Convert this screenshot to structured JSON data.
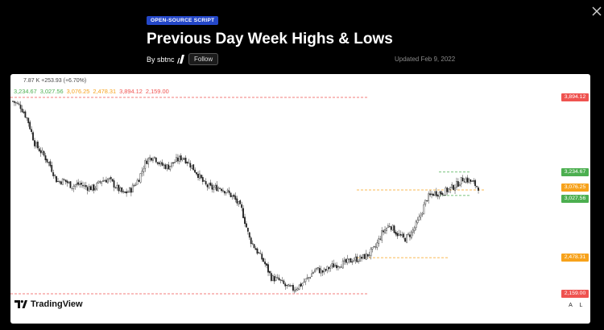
{
  "header": {
    "badge": "OPEN-SOURCE SCRIPT",
    "title": "Previous Day Week Highs & Lows",
    "author": "By sbtnc",
    "follow_label": "Follow",
    "updated": "Updated Feb 9, 2022"
  },
  "chart": {
    "legend_line1": "7.87 K  +253.93 (+6.70%)",
    "legend_values": [
      {
        "text": "3,234.67",
        "color": "#4caf50"
      },
      {
        "text": "3,027.56",
        "color": "#4caf50"
      },
      {
        "text": "3,076.25",
        "color": "#f7a21b"
      },
      {
        "text": "2,478.31",
        "color": "#f7a21b"
      },
      {
        "text": "3,894.12",
        "color": "#ef5350"
      },
      {
        "text": "2,159.00",
        "color": "#ef5350"
      }
    ],
    "price_tags": [
      {
        "label": "3,894.12",
        "color": "#ef5350"
      },
      {
        "label": "3,234.67",
        "color": "#4caf50"
      },
      {
        "label": "3,076.25",
        "color": "#f7a21b"
      },
      {
        "label": "3,027.56",
        "color": "#4caf50"
      },
      {
        "label": "2,478.31",
        "color": "#f7a21b"
      },
      {
        "label": "2,159.00",
        "color": "#ef5350"
      }
    ],
    "watermark": "TradingView",
    "axis_auto": "A",
    "axis_log": "L"
  },
  "chart_data": {
    "type": "candlestick",
    "price_range": [
      2159.0,
      3894.12
    ],
    "levels": [
      {
        "name": "prev-week-high",
        "value": 3894.12,
        "color": "#ef5350"
      },
      {
        "name": "prev-day-high",
        "value": 3234.67,
        "color": "#4caf50"
      },
      {
        "name": "prev-week-high-2",
        "value": 3076.25,
        "color": "#f7a21b"
      },
      {
        "name": "prev-day-low",
        "value": 3027.56,
        "color": "#4caf50"
      },
      {
        "name": "prev-week-low-2",
        "value": 2478.31,
        "color": "#f7a21b"
      },
      {
        "name": "prev-week-low",
        "value": 2159.0,
        "color": "#ef5350"
      }
    ],
    "close_path": [
      3860,
      3820,
      3700,
      3480,
      3400,
      3300,
      3150,
      3160,
      3110,
      3130,
      3100,
      3090,
      3160,
      3170,
      3100,
      3040,
      3080,
      3170,
      3330,
      3380,
      3300,
      3280,
      3330,
      3370,
      3300,
      3220,
      3120,
      3090,
      3100,
      3060,
      3000,
      2900,
      2650,
      2540,
      2440,
      2300,
      2280,
      2220,
      2200,
      2240,
      2300,
      2380,
      2350,
      2400,
      2420,
      2430,
      2460,
      2470,
      2500,
      2560,
      2700,
      2770,
      2690,
      2640,
      2700,
      2820,
      3000,
      3050,
      3050,
      3080,
      3120,
      3180,
      3150,
      3100
    ]
  }
}
